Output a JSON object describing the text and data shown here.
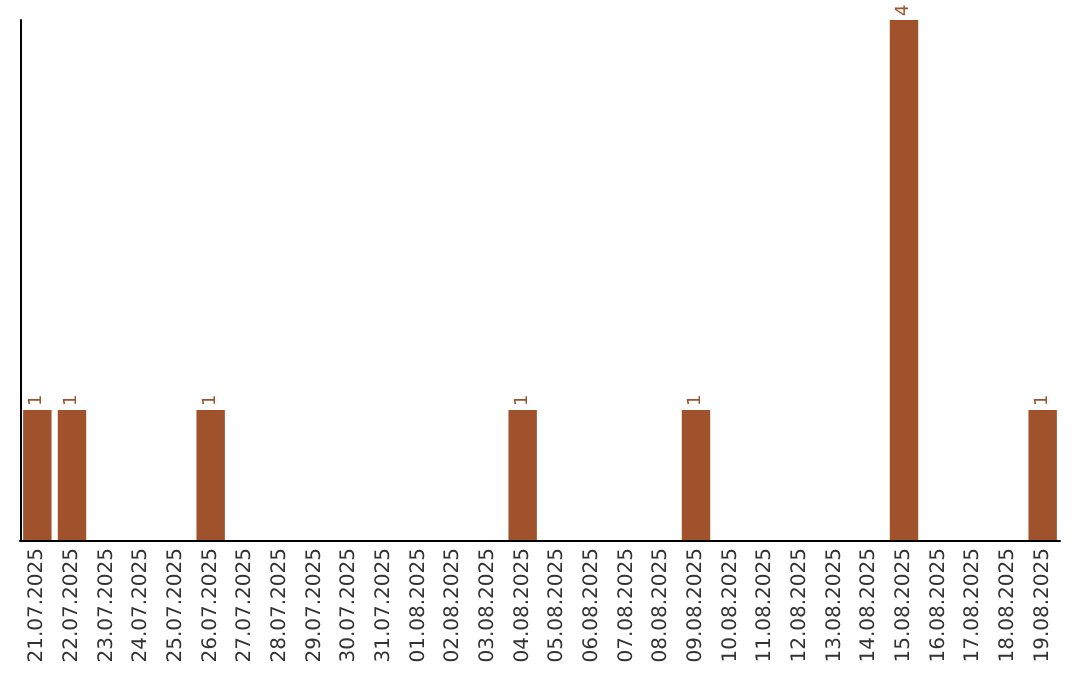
{
  "chart_data": {
    "type": "bar",
    "categories": [
      "21.07.2025",
      "22.07.2025",
      "23.07.2025",
      "24.07.2025",
      "25.07.2025",
      "26.07.2025",
      "27.07.2025",
      "28.07.2025",
      "29.07.2025",
      "30.07.2025",
      "31.07.2025",
      "01.08.2025",
      "02.08.2025",
      "03.08.2025",
      "04.08.2025",
      "05.08.2025",
      "06.08.2025",
      "07.08.2025",
      "08.08.2025",
      "09.08.2025",
      "10.08.2025",
      "11.08.2025",
      "12.08.2025",
      "13.08.2025",
      "14.08.2025",
      "15.08.2025",
      "16.08.2025",
      "17.08.2025",
      "18.08.2025",
      "19.08.2025"
    ],
    "values": [
      1,
      1,
      0,
      0,
      0,
      1,
      0,
      0,
      0,
      0,
      0,
      0,
      0,
      0,
      1,
      0,
      0,
      0,
      0,
      1,
      0,
      0,
      0,
      0,
      0,
      4,
      0,
      0,
      0,
      1
    ],
    "value_labels": [
      "1",
      "1",
      null,
      null,
      null,
      "1",
      null,
      null,
      null,
      null,
      null,
      null,
      null,
      null,
      "1",
      null,
      null,
      null,
      null,
      "1",
      null,
      null,
      null,
      null,
      null,
      "4",
      null,
      null,
      null,
      "1"
    ],
    "color": "#a0522d",
    "tick_labels": "x"
  }
}
